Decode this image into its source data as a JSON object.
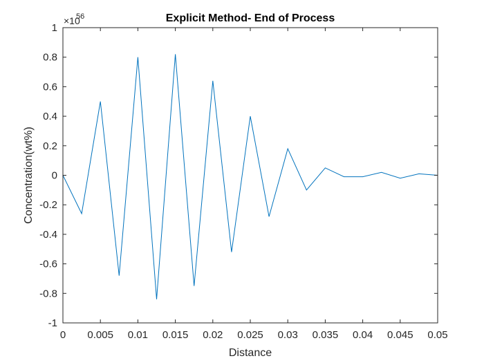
{
  "chart_data": {
    "type": "line",
    "title": "Explicit Method- End of Process",
    "xlabel": "Distance",
    "ylabel": "Concentration(wt%)",
    "xlim": [
      0,
      0.05
    ],
    "ylim": [
      -1,
      1
    ],
    "y_exponent_prefix": "×10",
    "y_exponent_power": "56",
    "xticks": [
      "0",
      "0.005",
      "0.01",
      "0.015",
      "0.02",
      "0.025",
      "0.03",
      "0.035",
      "0.04",
      "0.045",
      "0.05"
    ],
    "yticks": [
      "-1",
      "-0.8",
      "-0.6",
      "-0.4",
      "-0.2",
      "0",
      "0.2",
      "0.4",
      "0.6",
      "0.8",
      "1"
    ],
    "grid": false,
    "series": [
      {
        "color": "#0072BD",
        "x": [
          0,
          0.0025,
          0.005,
          0.0075,
          0.01,
          0.0125,
          0.015,
          0.0175,
          0.02,
          0.0225,
          0.025,
          0.0275,
          0.03,
          0.0325,
          0.035,
          0.0375,
          0.04,
          0.0425,
          0.045,
          0.0475,
          0.05
        ],
        "y": [
          0,
          -0.26,
          0.5,
          -0.68,
          0.8,
          -0.84,
          0.82,
          -0.75,
          0.64,
          -0.52,
          0.4,
          -0.28,
          0.18,
          -0.1,
          0.05,
          -0.01,
          -0.01,
          0.02,
          -0.02,
          0.01,
          0
        ]
      }
    ]
  }
}
